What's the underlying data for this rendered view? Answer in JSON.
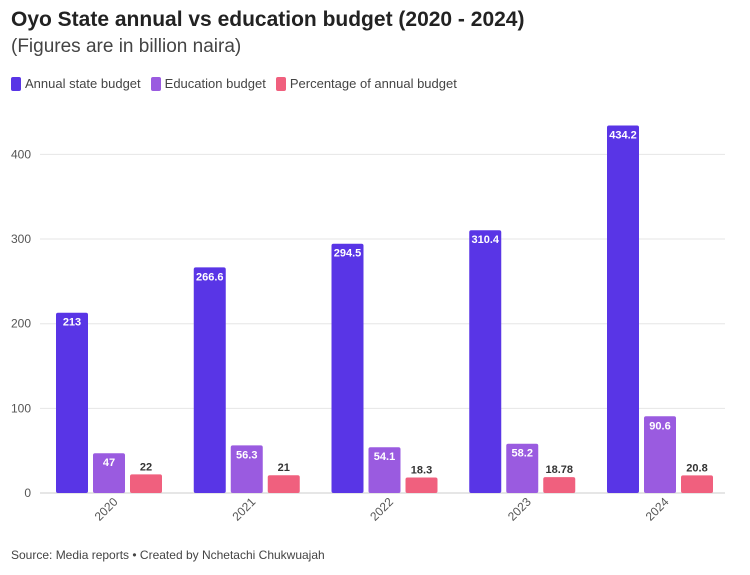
{
  "header": {
    "title": "Oyo State annual vs education budget (2020 - 2024)",
    "subtitle": "(Figures are in billion naira)"
  },
  "legend": [
    {
      "label": "Annual state budget",
      "color": "#5935e6"
    },
    {
      "label": "Education budget",
      "color": "#9a5be0"
    },
    {
      "label": "Percentage of annual budget",
      "color": "#f0607e"
    }
  ],
  "footer": {
    "source": "Source: Media reports • Created by Nchetachi Chukwuajah"
  },
  "chart_data": {
    "type": "bar",
    "categories": [
      "2020",
      "2021",
      "2022",
      "2023",
      "2024"
    ],
    "series": [
      {
        "name": "Annual state budget",
        "values": [
          213,
          266.6,
          294.5,
          310.4,
          434.2
        ],
        "labels": [
          "213",
          "266.6",
          "294.5",
          "310.4",
          "434.2"
        ],
        "color": "#5935e6"
      },
      {
        "name": "Education budget",
        "values": [
          47,
          56.3,
          54.1,
          58.2,
          90.6
        ],
        "labels": [
          "47",
          "56.3",
          "54.1",
          "58.2",
          "90.6"
        ],
        "color": "#9a5be0"
      },
      {
        "name": "Percentage of annual budget",
        "values": [
          22,
          21,
          18.3,
          18.78,
          20.8
        ],
        "labels": [
          "22",
          "21",
          "18.3",
          "18.78",
          "20.8"
        ],
        "color": "#f0607e"
      }
    ],
    "yticks": [
      "0",
      "100",
      "200",
      "300",
      "400"
    ],
    "ylim": [
      0,
      450
    ],
    "grid": true,
    "legend_position": "top-left"
  }
}
